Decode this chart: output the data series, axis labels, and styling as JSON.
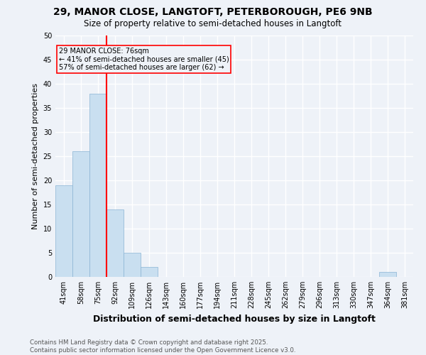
{
  "title_line1": "29, MANOR CLOSE, LANGTOFT, PETERBOROUGH, PE6 9NB",
  "title_line2": "Size of property relative to semi-detached houses in Langtoft",
  "xlabel": "Distribution of semi-detached houses by size in Langtoft",
  "ylabel": "Number of semi-detached properties",
  "categories": [
    "41sqm",
    "58sqm",
    "75sqm",
    "92sqm",
    "109sqm",
    "126sqm",
    "143sqm",
    "160sqm",
    "177sqm",
    "194sqm",
    "211sqm",
    "228sqm",
    "245sqm",
    "262sqm",
    "279sqm",
    "296sqm",
    "313sqm",
    "330sqm",
    "347sqm",
    "364sqm",
    "381sqm"
  ],
  "values": [
    19,
    26,
    38,
    14,
    5,
    2,
    0,
    0,
    0,
    0,
    0,
    0,
    0,
    0,
    0,
    0,
    0,
    0,
    0,
    1,
    0
  ],
  "bar_color": "#c9dff0",
  "bar_edge_color": "#8ab4d4",
  "highlight_bar_index": 2,
  "annotation_text_line1": "29 MANOR CLOSE: 76sqm",
  "annotation_text_line2": "← 41% of semi-detached houses are smaller (45)",
  "annotation_text_line3": "57% of semi-detached houses are larger (62) →",
  "ylim": [
    0,
    50
  ],
  "yticks": [
    0,
    5,
    10,
    15,
    20,
    25,
    30,
    35,
    40,
    45,
    50
  ],
  "footnote_line1": "Contains HM Land Registry data © Crown copyright and database right 2025.",
  "footnote_line2": "Contains public sector information licensed under the Open Government Licence v3.0.",
  "bg_color": "#eef2f8",
  "grid_color": "#ffffff"
}
